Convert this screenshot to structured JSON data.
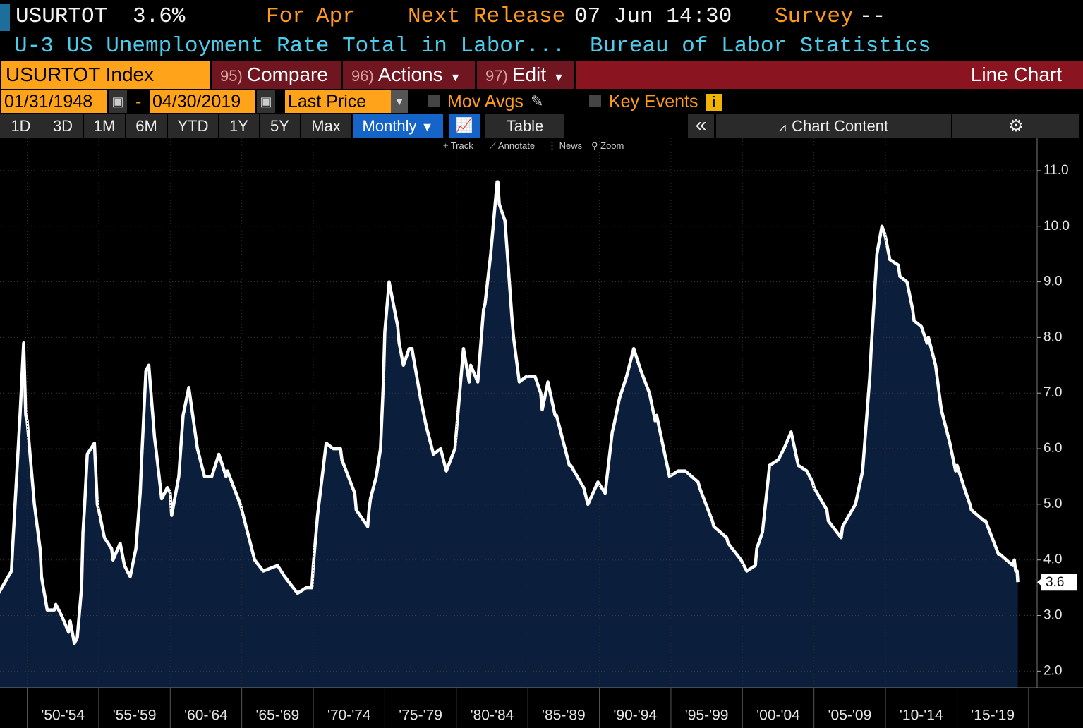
{
  "header": {
    "ticker": "USURTOT",
    "last_value": "3.6%",
    "for_label": "For",
    "for_value": "Apr",
    "next_release_label": "Next Release",
    "next_release_value": "07 Jun 14:30",
    "survey_label": "Survey",
    "survey_value": "--",
    "description": "U-3 US Unemployment Rate Total in Labor...",
    "source": "Bureau of Labor Statistics"
  },
  "toolbar": {
    "security": "USURTOT Index",
    "buttons": [
      {
        "number": "95)",
        "label": "Compare"
      },
      {
        "number": "96)",
        "label": "Actions"
      },
      {
        "number": "97)",
        "label": "Edit"
      }
    ],
    "chart_type": "Line Chart"
  },
  "settings": {
    "start_date": "01/31/1948",
    "separator": "-",
    "end_date": "04/30/2019",
    "field": "Last Price",
    "mov_avgs": "Mov Avgs",
    "key_events": "Key Events"
  },
  "tabs": {
    "periods": [
      "1D",
      "3D",
      "1M",
      "6M",
      "YTD",
      "1Y",
      "5Y",
      "Max"
    ],
    "frequency": "Monthly",
    "table": "Table",
    "chart_content": "Chart Content"
  },
  "tools": [
    "Track",
    "Annotate",
    "News",
    "Zoom"
  ],
  "chart_data": {
    "type": "line",
    "color": "#ffffff",
    "fill_color": "#0b1f3c",
    "grid": true,
    "xlim": [
      1948.1,
      2020.6
    ],
    "xticks": [
      {
        "value": 1950,
        "label": "'50-'54"
      },
      {
        "value": 1955,
        "label": "'55-'59"
      },
      {
        "value": 1960,
        "label": "'60-'64"
      },
      {
        "value": 1965,
        "label": "'65-'69"
      },
      {
        "value": 1970,
        "label": "'70-'74"
      },
      {
        "value": 1975,
        "label": "'75-'79"
      },
      {
        "value": 1980,
        "label": "'80-'84"
      },
      {
        "value": 1985,
        "label": "'85-'89"
      },
      {
        "value": 1990,
        "label": "'90-'94"
      },
      {
        "value": 1995,
        "label": "'95-'99"
      },
      {
        "value": 2000,
        "label": "'00-'04"
      },
      {
        "value": 2005,
        "label": "'05-'09"
      },
      {
        "value": 2010,
        "label": "'10-'14"
      },
      {
        "value": 2015,
        "label": "'15-'19"
      }
    ],
    "ylim": [
      1.7,
      11.57
    ],
    "yticks": [
      {
        "value": 2,
        "label": "2.0"
      },
      {
        "value": 3,
        "label": "3.0"
      },
      {
        "value": 4,
        "label": "4.0"
      },
      {
        "value": 5,
        "label": "5.0"
      },
      {
        "value": 6,
        "label": "6.0"
      },
      {
        "value": 7,
        "label": "7.0"
      },
      {
        "value": 8,
        "label": "8.0"
      },
      {
        "value": 9,
        "label": "9.0"
      },
      {
        "value": 10,
        "label": "10.0"
      },
      {
        "value": 11,
        "label": "11.0"
      }
    ],
    "x": [
      1948.0,
      1948.9,
      1949.0,
      1949.5,
      1949.75,
      1949.9,
      1950.0,
      1950.5,
      1950.9,
      1951.0,
      1951.4,
      1951.9,
      1952.0,
      1952.4,
      1952.9,
      1953.0,
      1953.3,
      1953.5,
      1953.8,
      1953.9,
      1954.0,
      1954.2,
      1954.7,
      1954.9,
      1955.0,
      1955.4,
      1955.9,
      1956.0,
      1956.5,
      1956.8,
      1957.2,
      1957.6,
      1957.9,
      1958.0,
      1958.3,
      1958.5,
      1958.9,
      1959.0,
      1959.4,
      1959.8,
      1960.0,
      1960.1,
      1960.6,
      1960.9,
      1961.3,
      1961.9,
      1962.4,
      1962.9,
      1963.4,
      1963.9,
      1964.0,
      1964.9,
      1965.0,
      1965.9,
      1966.5,
      1967.5,
      1968.0,
      1968.9,
      1969.5,
      1969.9,
      1970.0,
      1970.3,
      1970.9,
      1971.4,
      1971.9,
      1972.0,
      1972.9,
      1973.0,
      1973.8,
      1973.9,
      1974.0,
      1974.4,
      1974.7,
      1974.9,
      1975.0,
      1975.3,
      1975.9,
      1976.0,
      1976.3,
      1976.7,
      1976.9,
      1977.5,
      1977.9,
      1978.4,
      1978.9,
      1979.3,
      1979.9,
      1980.0,
      1980.4,
      1980.5,
      1980.9,
      1981.0,
      1981.5,
      1981.9,
      1982.0,
      1982.4,
      1982.85,
      1982.9,
      1983.0,
      1983.4,
      1983.9,
      1984.0,
      1984.4,
      1984.9,
      1985.5,
      1985.9,
      1986.0,
      1986.4,
      1986.9,
      1987.0,
      1987.9,
      1988.0,
      1988.9,
      1989.2,
      1989.9,
      1990.4,
      1990.9,
      1991.0,
      1991.4,
      1991.9,
      1992.4,
      1992.9,
      1993.5,
      1993.9,
      1994.0,
      1994.9,
      1995.5,
      1996.0,
      1996.9,
      1997.0,
      1997.9,
      1998.0,
      1998.9,
      1999.0,
      1999.9,
      2000.3,
      2000.9,
      2001.0,
      2001.4,
      2001.9,
      2002.5,
      2002.9,
      2003.4,
      2003.9,
      2004.5,
      2004.9,
      2005.0,
      2005.9,
      2006.0,
      2006.9,
      2007.0,
      2007.9,
      2008.4,
      2008.9,
      2009.0,
      2009.4,
      2009.75,
      2009.9,
      2010.0,
      2010.3,
      2010.9,
      2011.0,
      2011.5,
      2011.9,
      2012.0,
      2012.5,
      2012.9,
      2013.0,
      2013.5,
      2013.9,
      2014.0,
      2014.5,
      2014.9,
      2015.0,
      2015.5,
      2015.9,
      2016.0,
      2016.9,
      2017.0,
      2017.9,
      2018.0,
      2018.9,
      2019.0,
      2019.1,
      2019.2,
      2019.25
    ],
    "values": [
      3.4,
      3.8,
      4.3,
      6.6,
      7.9,
      6.6,
      6.5,
      5.0,
      4.2,
      3.7,
      3.1,
      3.1,
      3.2,
      3.0,
      2.7,
      2.9,
      2.5,
      2.6,
      3.5,
      4.5,
      4.9,
      5.9,
      6.1,
      5.0,
      4.9,
      4.4,
      4.2,
      4.0,
      4.3,
      3.9,
      3.7,
      4.2,
      5.2,
      5.8,
      7.4,
      7.5,
      6.2,
      6.0,
      5.1,
      5.3,
      5.2,
      4.8,
      5.5,
      6.6,
      7.1,
      6.0,
      5.5,
      5.5,
      5.9,
      5.5,
      5.6,
      5.0,
      4.9,
      4.0,
      3.8,
      3.9,
      3.7,
      3.4,
      3.5,
      3.5,
      3.9,
      4.8,
      6.1,
      6.0,
      6.0,
      5.8,
      5.2,
      4.9,
      4.6,
      4.9,
      5.1,
      5.5,
      6.0,
      7.2,
      8.1,
      9.0,
      8.2,
      7.9,
      7.5,
      7.8,
      7.8,
      6.9,
      6.4,
      5.9,
      6.0,
      5.6,
      6.0,
      6.3,
      7.5,
      7.8,
      7.2,
      7.5,
      7.2,
      8.5,
      8.6,
      9.5,
      10.8,
      10.8,
      10.4,
      10.1,
      8.3,
      8.0,
      7.2,
      7.3,
      7.3,
      7.0,
      6.7,
      7.2,
      6.6,
      6.6,
      5.7,
      5.7,
      5.3,
      5.0,
      5.4,
      5.2,
      6.3,
      6.4,
      6.9,
      7.3,
      7.8,
      7.4,
      7.0,
      6.5,
      6.6,
      5.5,
      5.6,
      5.6,
      5.4,
      5.3,
      4.7,
      4.6,
      4.4,
      4.3,
      4.0,
      3.8,
      3.9,
      4.2,
      4.5,
      5.7,
      5.8,
      6.0,
      6.3,
      5.7,
      5.6,
      5.4,
      5.3,
      4.9,
      4.7,
      4.4,
      4.6,
      5.0,
      5.6,
      7.3,
      7.8,
      9.5,
      10.0,
      9.9,
      9.8,
      9.4,
      9.3,
      9.1,
      9.0,
      8.5,
      8.3,
      8.2,
      7.9,
      8.0,
      7.5,
      6.7,
      6.6,
      6.1,
      5.6,
      5.7,
      5.3,
      5.0,
      4.9,
      4.7,
      4.7,
      4.1,
      4.1,
      3.9,
      4.0,
      3.8,
      3.8,
      3.6
    ]
  }
}
